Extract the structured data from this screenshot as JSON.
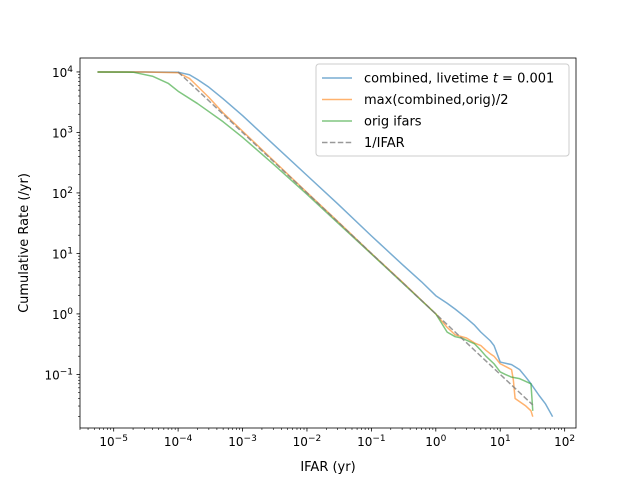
{
  "chart_data": {
    "type": "line",
    "title": "",
    "xlabel": "IFAR (yr)",
    "ylabel": "Cumulative Rate (/yr)",
    "xscale": "log",
    "yscale": "log",
    "xlim": [
      3e-06,
      150
    ],
    "ylim": [
      0.013,
      17000
    ],
    "grid": false,
    "legend_position": "top-right",
    "x_ticks": [
      {
        "value": 1e-05,
        "base": "10",
        "exp": "−5"
      },
      {
        "value": 0.0001,
        "base": "10",
        "exp": "−4"
      },
      {
        "value": 0.001,
        "base": "10",
        "exp": "−3"
      },
      {
        "value": 0.01,
        "base": "10",
        "exp": "−2"
      },
      {
        "value": 0.1,
        "base": "10",
        "exp": "−1"
      },
      {
        "value": 1,
        "base": "10",
        "exp": "0"
      },
      {
        "value": 10,
        "base": "10",
        "exp": "1"
      },
      {
        "value": 100,
        "base": "10",
        "exp": "2"
      }
    ],
    "y_ticks": [
      {
        "value": 0.1,
        "base": "10",
        "exp": "−1"
      },
      {
        "value": 1,
        "base": "10",
        "exp": "0"
      },
      {
        "value": 10,
        "base": "10",
        "exp": "1"
      },
      {
        "value": 100,
        "base": "10",
        "exp": "2"
      },
      {
        "value": 1000,
        "base": "10",
        "exp": "3"
      },
      {
        "value": 10000,
        "base": "10",
        "exp": "4"
      }
    ],
    "series": [
      {
        "name": "combined, livetime t = 0.001",
        "name_parts": [
          "combined, livetime ",
          "t",
          " = 0.001"
        ],
        "color": "#1f77b4",
        "dash": "solid",
        "x": [
          5.6e-06,
          3e-05,
          0.0001,
          0.00015,
          0.0002,
          0.0003,
          0.0005,
          0.001,
          0.003,
          0.01,
          0.03,
          0.1,
          0.3,
          0.6,
          1,
          1.5,
          2,
          3,
          4,
          5,
          7,
          8,
          10,
          15,
          20,
          25,
          30,
          40,
          50,
          65
        ],
        "y": [
          10000,
          10000,
          9900,
          9000,
          7500,
          5600,
          3600,
          1900,
          640,
          195,
          66,
          19.5,
          6.6,
          3.4,
          2.0,
          1.5,
          1.2,
          0.85,
          0.65,
          0.5,
          0.36,
          0.3,
          0.16,
          0.145,
          0.12,
          0.09,
          0.07,
          0.045,
          0.033,
          0.02
        ]
      },
      {
        "name": "max(combined,orig)/2",
        "color": "#ff7f0e",
        "dash": "solid",
        "x": [
          5.6e-06,
          3e-05,
          0.0001,
          0.00015,
          0.0002,
          0.0003,
          0.0005,
          0.001,
          0.003,
          0.01,
          0.03,
          0.1,
          0.3,
          1,
          1.5,
          2,
          3,
          4,
          5,
          6,
          7,
          8,
          10,
          15,
          16,
          17,
          25,
          30,
          32
        ],
        "y": [
          10000,
          10000,
          9700,
          7800,
          5800,
          3800,
          2100,
          1050,
          345,
          102,
          34,
          10,
          3.4,
          1.0,
          0.6,
          0.45,
          0.4,
          0.33,
          0.3,
          0.25,
          0.22,
          0.2,
          0.15,
          0.12,
          0.08,
          0.04,
          0.03,
          0.025,
          0.02
        ]
      },
      {
        "name": "orig ifars",
        "color": "#2ca02c",
        "dash": "solid",
        "x": [
          5.6e-06,
          2e-05,
          4e-05,
          7e-05,
          0.0001,
          0.0002,
          0.0005,
          0.001,
          0.003,
          0.01,
          0.03,
          0.1,
          0.3,
          1,
          1.5,
          2,
          2.5,
          4,
          5,
          6,
          8,
          10,
          12,
          15,
          20,
          30,
          32
        ],
        "y": [
          10000,
          9900,
          8500,
          6500,
          4800,
          3000,
          1500,
          830,
          300,
          95,
          32,
          9.8,
          3.3,
          1.0,
          0.5,
          0.42,
          0.4,
          0.32,
          0.25,
          0.2,
          0.15,
          0.11,
          0.1,
          0.09,
          0.085,
          0.07,
          0.025
        ]
      },
      {
        "name": "1/IFAR",
        "color": "#7f7f7f",
        "dash": "dashed",
        "x": [
          0.0001,
          32
        ],
        "y": [
          10000,
          0.03125
        ]
      }
    ]
  }
}
